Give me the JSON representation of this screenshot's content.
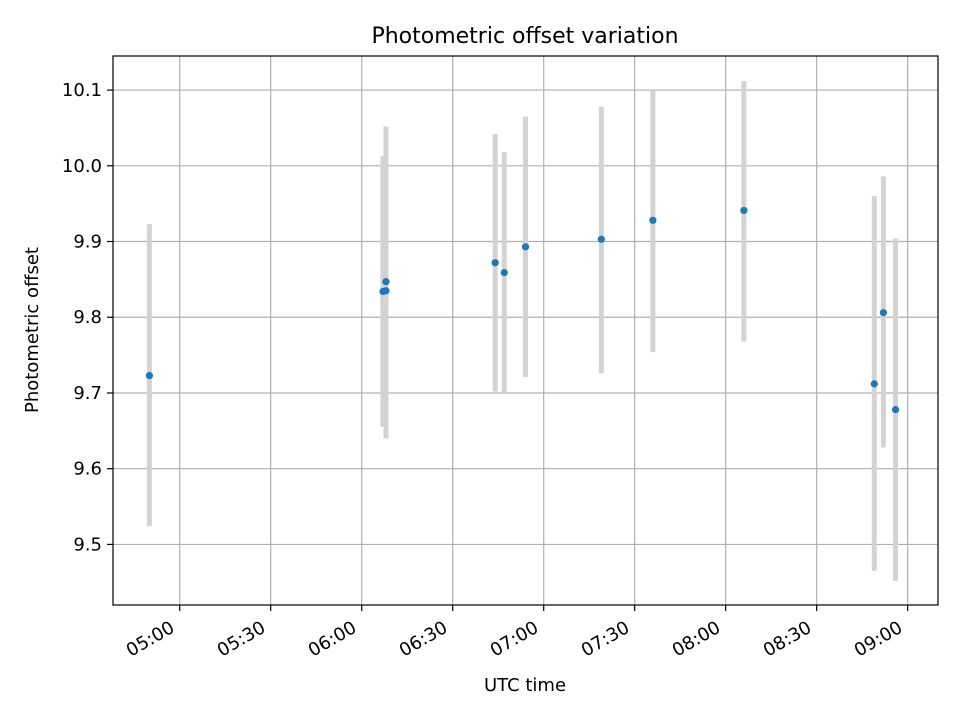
{
  "chart_data": {
    "type": "scatter",
    "title": "Photometric offset variation",
    "xlabel": "UTC time",
    "ylabel": "Photometric offset",
    "grid": true,
    "colors": {
      "points": "#1f77b4",
      "errorbars": "#d3d3d3",
      "grid": "#b0b0b0",
      "axes": "#000000"
    },
    "xlim": [
      "04:38",
      "09:10"
    ],
    "ylim": [
      9.42,
      10.145
    ],
    "x_ticks": [
      "05:00",
      "05:30",
      "06:00",
      "06:30",
      "07:00",
      "07:30",
      "08:00",
      "08:30",
      "09:00"
    ],
    "y_ticks": [
      "9.5",
      "9.6",
      "9.7",
      "9.8",
      "9.9",
      "10.0",
      "10.1"
    ],
    "points": [
      {
        "x": "04:50",
        "y": 9.723,
        "err_low": 9.524,
        "err_high": 9.923
      },
      {
        "x": "06:07",
        "y": 9.834,
        "err_low": 9.655,
        "err_high": 10.013
      },
      {
        "x": "06:08",
        "y": 9.847,
        "err_low": 9.642,
        "err_high": 10.052
      },
      {
        "x": "06:08",
        "y": 9.835,
        "err_low": 9.64,
        "err_high": 10.03
      },
      {
        "x": "06:44",
        "y": 9.872,
        "err_low": 9.702,
        "err_high": 10.042
      },
      {
        "x": "06:47",
        "y": 9.859,
        "err_low": 9.7,
        "err_high": 10.018
      },
      {
        "x": "06:54",
        "y": 9.893,
        "err_low": 9.721,
        "err_high": 10.065
      },
      {
        "x": "07:19",
        "y": 9.903,
        "err_low": 9.726,
        "err_high": 10.078
      },
      {
        "x": "07:36",
        "y": 9.928,
        "err_low": 9.754,
        "err_high": 10.1
      },
      {
        "x": "08:06",
        "y": 9.941,
        "err_low": 9.768,
        "err_high": 10.112
      },
      {
        "x": "08:49",
        "y": 9.712,
        "err_low": 9.465,
        "err_high": 9.96
      },
      {
        "x": "08:52",
        "y": 9.806,
        "err_low": 9.628,
        "err_high": 9.986
      },
      {
        "x": "08:56",
        "y": 9.678,
        "err_low": 9.452,
        "err_high": 9.904
      }
    ]
  }
}
